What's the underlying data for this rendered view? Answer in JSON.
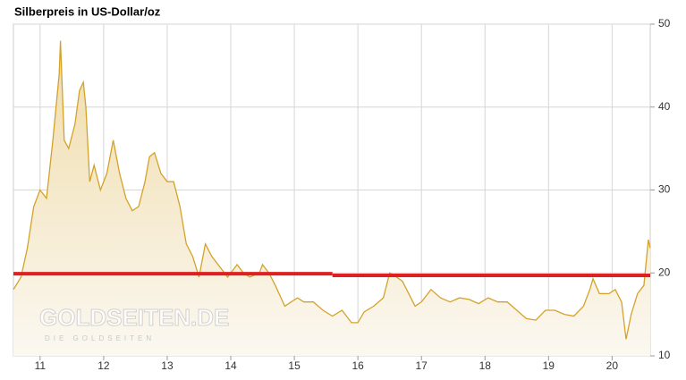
{
  "chart_data": {
    "type": "area",
    "title": "Silberpreis in US-Dollar/oz",
    "watermark": "GOLDSEITEN.DE",
    "watermark_subtitle": "DIE GOLDSEITEN",
    "x": [
      2010.58,
      2010.7,
      2010.8,
      2010.9,
      2011.0,
      2011.1,
      2011.2,
      2011.3,
      2011.32,
      2011.38,
      2011.45,
      2011.55,
      2011.62,
      2011.68,
      2011.72,
      2011.78,
      2011.85,
      2011.95,
      2012.05,
      2012.15,
      2012.25,
      2012.35,
      2012.45,
      2012.55,
      2012.65,
      2012.72,
      2012.8,
      2012.9,
      2013.0,
      2013.1,
      2013.2,
      2013.3,
      2013.4,
      2013.5,
      2013.6,
      2013.7,
      2013.85,
      2013.95,
      2014.1,
      2014.2,
      2014.3,
      2014.45,
      2014.5,
      2014.6,
      2014.7,
      2014.85,
      2014.95,
      2015.05,
      2015.15,
      2015.3,
      2015.45,
      2015.6,
      2015.75,
      2015.9,
      2016.0,
      2016.1,
      2016.25,
      2016.4,
      2016.5,
      2016.55,
      2016.7,
      2016.8,
      2016.9,
      2017.0,
      2017.15,
      2017.3,
      2017.45,
      2017.6,
      2017.75,
      2017.9,
      2018.05,
      2018.2,
      2018.35,
      2018.5,
      2018.65,
      2018.8,
      2018.95,
      2019.1,
      2019.25,
      2019.4,
      2019.55,
      2019.65,
      2019.7,
      2019.8,
      2019.95,
      2020.05,
      2020.15,
      2020.22,
      2020.3,
      2020.4,
      2020.5,
      2020.57,
      2020.6
    ],
    "series": [
      {
        "name": "Silberpreis",
        "color": "#d4a22b",
        "values": [
          18,
          19.5,
          23,
          28,
          30,
          29,
          36,
          44,
          48,
          36,
          35,
          38,
          42,
          43,
          40,
          31,
          33,
          30,
          32,
          36,
          32,
          29,
          27.5,
          28,
          31,
          34,
          34.5,
          32,
          31,
          31,
          28,
          23.5,
          22,
          19.5,
          23.5,
          22,
          20.5,
          19.5,
          21,
          20,
          19.5,
          20,
          21,
          20,
          18.5,
          16,
          16.5,
          17,
          16.5,
          16.5,
          15.5,
          14.8,
          15.5,
          14,
          14,
          15.3,
          16,
          17,
          20,
          19.8,
          19,
          17.5,
          16,
          16.5,
          18,
          17,
          16.5,
          17,
          16.8,
          16.3,
          17,
          16.5,
          16.5,
          15.5,
          14.5,
          14.3,
          15.5,
          15.5,
          15,
          14.8,
          16,
          18,
          19.3,
          17.5,
          17.5,
          18,
          16.5,
          12,
          15,
          17.5,
          18.5,
          24,
          23
        ]
      }
    ],
    "reference_lines": [
      {
        "color": "#e02020",
        "x": [
          2010.58,
          2015.6
        ],
        "y": 19.9
      },
      {
        "color": "#e02020",
        "x": [
          2015.6,
          2020.6
        ],
        "y": 19.7
      }
    ],
    "xlim": [
      2010.58,
      2020.6
    ],
    "xticks": [
      {
        "value": 2011,
        "label": "11"
      },
      {
        "value": 2012,
        "label": "12"
      },
      {
        "value": 2013,
        "label": "13"
      },
      {
        "value": 2014,
        "label": "14"
      },
      {
        "value": 2015,
        "label": "15"
      },
      {
        "value": 2016,
        "label": "16"
      },
      {
        "value": 2017,
        "label": "17"
      },
      {
        "value": 2018,
        "label": "18"
      },
      {
        "value": 2019,
        "label": "19"
      },
      {
        "value": 2020,
        "label": "20"
      }
    ],
    "ylim": [
      10,
      50
    ],
    "yticks": [
      10,
      20,
      30,
      40,
      50
    ],
    "grid": true
  }
}
